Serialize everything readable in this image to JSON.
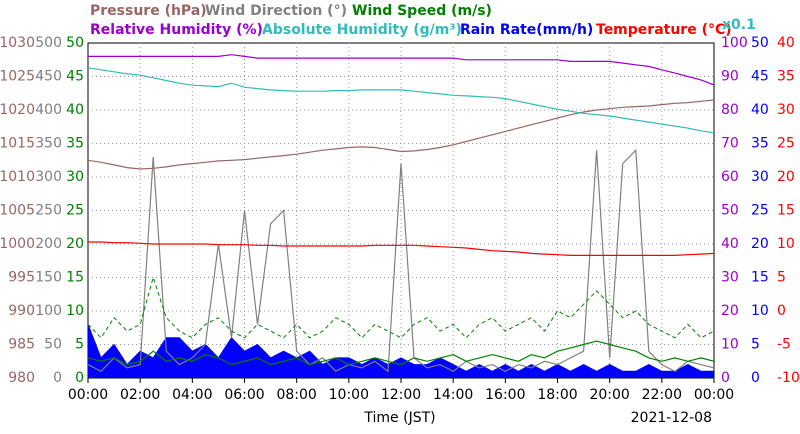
{
  "chart_data": {
    "type": "line",
    "x_title": "Time (JST)",
    "date": "2021-12-08",
    "annotation": "x0.1",
    "annotation_color": "#33bbbb",
    "xlim": [
      0,
      24
    ],
    "xticks": [
      {
        "value": 0,
        "label": "00:00"
      },
      {
        "value": 2,
        "label": "02:00"
      },
      {
        "value": 4,
        "label": "04:00"
      },
      {
        "value": 6,
        "label": "06:00"
      },
      {
        "value": 8,
        "label": "08:00"
      },
      {
        "value": 10,
        "label": "10:00"
      },
      {
        "value": 12,
        "label": "12:00"
      },
      {
        "value": 14,
        "label": "14:00"
      },
      {
        "value": 16,
        "label": "16:00"
      },
      {
        "value": 18,
        "label": "18:00"
      },
      {
        "value": 20,
        "label": "20:00"
      },
      {
        "value": 22,
        "label": "22:00"
      },
      {
        "value": 24,
        "label": "00:00"
      }
    ],
    "grid": true,
    "axes": [
      {
        "side": "left",
        "color": "#996666",
        "ylim": [
          980,
          1030
        ],
        "yticks": [
          980,
          985,
          990,
          995,
          1000,
          1005,
          1010,
          1015,
          1020,
          1025,
          1030
        ]
      },
      {
        "side": "left",
        "color": "#808080",
        "ylim": [
          0,
          500
        ],
        "yticks": [
          0,
          50,
          100,
          150,
          200,
          250,
          300,
          350,
          400,
          450,
          500
        ]
      },
      {
        "side": "left",
        "color": "#008000",
        "ylim": [
          0,
          50
        ],
        "yticks": [
          0,
          5,
          10,
          15,
          20,
          25,
          30,
          35,
          40,
          45,
          50
        ]
      },
      {
        "side": "right",
        "color": "#9900cc",
        "ylim": [
          0,
          100
        ],
        "yticks": [
          0,
          10,
          20,
          30,
          40,
          50,
          60,
          70,
          80,
          90,
          100
        ]
      },
      {
        "side": "right",
        "color": "#0000ff",
        "ylim": [
          0,
          50
        ],
        "yticks": [
          0,
          5,
          10,
          15,
          20,
          25,
          30,
          35,
          40,
          45,
          50
        ]
      },
      {
        "side": "right",
        "color": "#ff0000",
        "ylim": [
          -10,
          40
        ],
        "yticks": [
          -10,
          -5,
          0,
          5,
          10,
          15,
          20,
          25,
          30,
          35,
          40
        ]
      }
    ],
    "x": [
      0,
      0.5,
      1,
      1.5,
      2,
      2.5,
      3,
      3.5,
      4,
      4.5,
      5,
      5.5,
      6,
      6.5,
      7,
      7.5,
      8,
      8.5,
      9,
      9.5,
      10,
      10.5,
      11,
      11.5,
      12,
      12.5,
      13,
      13.5,
      14,
      14.5,
      15,
      15.5,
      16,
      16.5,
      17,
      17.5,
      18,
      18.5,
      19,
      19.5,
      20,
      20.5,
      21,
      21.5,
      22,
      22.5,
      23,
      23.5,
      24
    ],
    "series": [
      {
        "name": "Rain Rate(mm/h)",
        "color": "#0000ff",
        "axis": 4,
        "style": "area",
        "values": [
          8,
          3,
          5,
          2,
          4,
          3,
          6,
          6,
          4,
          5,
          3,
          6,
          4,
          5,
          3,
          4,
          3,
          4,
          2,
          3,
          3,
          2,
          3,
          2,
          3,
          2,
          2,
          3,
          2,
          1,
          2,
          1,
          2,
          1,
          2,
          1,
          2,
          1,
          2,
          1,
          2,
          1,
          1,
          2,
          1,
          1,
          2,
          1,
          1
        ]
      },
      {
        "name": "Pressure (hPa)",
        "color": "#996666",
        "axis": 0,
        "style": "line",
        "values": [
          1012.5,
          1012.2,
          1011.8,
          1011.4,
          1011.2,
          1011.3,
          1011.5,
          1011.8,
          1012,
          1012.2,
          1012.4,
          1012.5,
          1012.6,
          1012.8,
          1013,
          1013.2,
          1013.4,
          1013.7,
          1014,
          1014.2,
          1014.4,
          1014.5,
          1014.4,
          1014.1,
          1013.8,
          1013.9,
          1014.1,
          1014.4,
          1014.8,
          1015.3,
          1015.8,
          1016.3,
          1016.8,
          1017.3,
          1017.8,
          1018.3,
          1018.8,
          1019.3,
          1019.7,
          1020,
          1020.2,
          1020.4,
          1020.5,
          1020.6,
          1020.8,
          1021,
          1021.1,
          1021.3,
          1021.5
        ]
      },
      {
        "name": "Wind Direction (°)",
        "color": "#808080",
        "axis": 1,
        "style": "line",
        "values": [
          20,
          10,
          30,
          15,
          20,
          330,
          40,
          20,
          30,
          50,
          200,
          60,
          250,
          80,
          230,
          250,
          40,
          20,
          30,
          10,
          20,
          15,
          25,
          10,
          320,
          30,
          15,
          20,
          10,
          25,
          15,
          20,
          10,
          20,
          15,
          25,
          20,
          30,
          40,
          340,
          30,
          320,
          340,
          40,
          20,
          10,
          25,
          20,
          15
        ]
      },
      {
        "name": "Wind Speed (m/s)",
        "color": "#008000",
        "axis": 2,
        "style": "line",
        "values": [
          3,
          2.5,
          3,
          2,
          2.5,
          4,
          2.5,
          3,
          2.5,
          3.5,
          3,
          2,
          2.5,
          3,
          2,
          2.5,
          3,
          2,
          2.5,
          3,
          2,
          2.5,
          3,
          2.5,
          2,
          3,
          2.5,
          3,
          3.5,
          2.5,
          3,
          3.5,
          3,
          2.5,
          3.5,
          3,
          4,
          4.5,
          5,
          5.5,
          5,
          4.5,
          4,
          3,
          2.5,
          3,
          2.5,
          3,
          2.5
        ]
      },
      {
        "color": "#008000",
        "axis": 2,
        "style": "dashed",
        "values": [
          8,
          6,
          9,
          7,
          8,
          15,
          9,
          7,
          6,
          8,
          9,
          7,
          6,
          8,
          7,
          6,
          8,
          6,
          7,
          9,
          8,
          6,
          8,
          7,
          6,
          8,
          9,
          7,
          8,
          6,
          8,
          9,
          7,
          8,
          9,
          7,
          10,
          9,
          11,
          13,
          11,
          9,
          10,
          8,
          7,
          6,
          8,
          6,
          7
        ]
      },
      {
        "name": "Relative Humidity (%)",
        "color": "#9900cc",
        "axis": 3,
        "style": "line",
        "values": [
          96,
          96,
          96,
          96,
          96,
          96,
          96,
          96,
          96,
          96,
          96,
          96.5,
          96,
          95.5,
          95.5,
          95.5,
          95.5,
          95.5,
          95.5,
          95.5,
          95.5,
          95.5,
          95.5,
          95.5,
          95.5,
          95.5,
          95.5,
          95.5,
          95.5,
          95,
          95,
          95,
          95,
          95,
          95,
          95,
          95,
          94.5,
          94.5,
          94.5,
          94.5,
          94,
          93.5,
          93,
          92,
          91,
          90,
          89,
          87.5
        ]
      },
      {
        "name": "Absolute Humidity (g/m³)",
        "color": "#33bbbb",
        "axis": 4,
        "style": "line",
        "values": [
          46.3,
          46,
          45.7,
          45.4,
          45.2,
          44.8,
          44.4,
          44,
          43.7,
          43.6,
          43.5,
          44,
          43.4,
          43.2,
          43,
          42.9,
          42.8,
          42.8,
          42.8,
          42.9,
          42.9,
          43,
          43,
          43,
          43,
          42.8,
          42.6,
          42.4,
          42.2,
          42.1,
          42,
          41.9,
          41.7,
          41.3,
          40.9,
          40.5,
          40.1,
          39.8,
          39.5,
          39.3,
          39.1,
          38.8,
          38.5,
          38.2,
          37.9,
          37.6,
          37.3,
          36.9,
          36.6
        ]
      },
      {
        "name": "Temperature (°C)",
        "color": "#ff0000",
        "axis": 5,
        "style": "line",
        "values": [
          10.3,
          10.3,
          10.2,
          10.2,
          10.1,
          10,
          10,
          10,
          10,
          10,
          9.9,
          9.9,
          9.9,
          9.8,
          9.8,
          9.7,
          9.7,
          9.7,
          9.7,
          9.7,
          9.7,
          9.7,
          9.8,
          9.8,
          9.8,
          9.8,
          9.7,
          9.6,
          9.5,
          9.4,
          9.2,
          9,
          8.9,
          8.8,
          8.6,
          8.5,
          8.4,
          8.3,
          8.3,
          8.3,
          8.3,
          8.3,
          8.3,
          8.3,
          8.3,
          8.3,
          8.4,
          8.5,
          8.6
        ]
      }
    ]
  }
}
